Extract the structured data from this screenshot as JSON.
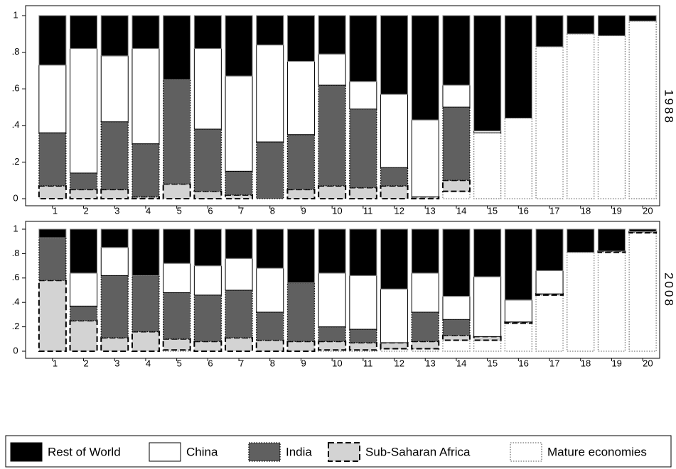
{
  "chart_data": {
    "type": "bar",
    "stacked": true,
    "panels": [
      "1988",
      "2008"
    ],
    "categories": [
      "1",
      "2",
      "3",
      "4",
      "5",
      "6",
      "7",
      "8",
      "9",
      "10",
      "11",
      "12",
      "13",
      "14",
      "15",
      "16",
      "17",
      "18",
      "19",
      "20"
    ],
    "ylim": [
      0,
      1
    ],
    "yticks": [
      0,
      {
        "value": 0.2,
        "label": ".2"
      },
      {
        "value": 0.4,
        "label": ".4"
      },
      {
        "value": 0.6,
        "label": ".6"
      },
      {
        "value": 0.8,
        "label": ".8"
      },
      1
    ],
    "series": [
      {
        "name": "Rest of World",
        "color": "#000000",
        "border": "solid",
        "values": [
          [
            0.27,
            0.18,
            0.22,
            0.18,
            0.35,
            0.18,
            0.33,
            0.16,
            0.25,
            0.21,
            0.36,
            0.43,
            0.57,
            0.38,
            0.63,
            0.56,
            0.17,
            0.1,
            0.11,
            0.03
          ],
          [
            0.07,
            0.36,
            0.15,
            0.38,
            0.28,
            0.3,
            0.24,
            0.32,
            0.44,
            0.36,
            0.38,
            0.49,
            0.36,
            0.55,
            0.39,
            0.58,
            0.34,
            0.19,
            0.18,
            0.02
          ]
        ]
      },
      {
        "name": "China",
        "color": "#ffffff",
        "border": "solid",
        "values": [
          [
            0.37,
            0.68,
            0.36,
            0.52,
            0,
            0.44,
            0.52,
            0.53,
            0.4,
            0.17,
            0.15,
            0.4,
            0.42,
            0.12,
            0.01,
            0,
            0,
            0,
            0,
            0
          ],
          [
            0,
            0.27,
            0.23,
            0,
            0.24,
            0.24,
            0.26,
            0.36,
            0,
            0.44,
            0.44,
            0.44,
            0.32,
            0.19,
            0.49,
            0.18,
            0.19,
            0,
            0,
            0
          ]
        ]
      },
      {
        "name": "India",
        "color": "#606060",
        "border": "dotted",
        "values": [
          [
            0.29,
            0.09,
            0.37,
            0.29,
            0.57,
            0.34,
            0.13,
            0.31,
            0.3,
            0.55,
            0.43,
            0.1,
            0,
            0.4,
            0,
            0,
            0,
            0,
            0,
            0
          ],
          [
            0.35,
            0.12,
            0.51,
            0.46,
            0.38,
            0.38,
            0.39,
            0.23,
            0.48,
            0.12,
            0.11,
            0,
            0.24,
            0.13,
            0,
            0,
            0,
            0,
            0,
            0
          ]
        ]
      },
      {
        "name": "Sub-Saharan Africa",
        "color": "#d3d3d3",
        "border": "dashed",
        "values": [
          [
            0.07,
            0.05,
            0.05,
            0.01,
            0.08,
            0.04,
            0.02,
            0,
            0.05,
            0.07,
            0.06,
            0.07,
            0.01,
            0.06,
            0,
            0,
            0,
            0,
            0,
            0
          ],
          [
            0.58,
            0.25,
            0.11,
            0.16,
            0.09,
            0.08,
            0.11,
            0.09,
            0.08,
            0.07,
            0.06,
            0.05,
            0.06,
            0.04,
            0.03,
            0.01,
            0.01,
            0,
            0.01,
            0.01
          ]
        ]
      },
      {
        "name": "Mature economies",
        "color": "#ffffff",
        "border": "dotted",
        "values": [
          [
            0,
            0,
            0,
            0,
            0,
            0,
            0,
            0,
            0,
            0,
            0,
            0,
            0,
            0.04,
            0.36,
            0.44,
            0.83,
            0.9,
            0.89,
            0.97
          ],
          [
            0,
            0,
            0,
            0,
            0.01,
            0,
            0,
            0,
            0,
            0.01,
            0.01,
            0.02,
            0.02,
            0.09,
            0.09,
            0.23,
            0.46,
            0.81,
            0.81,
            0.97
          ]
        ]
      }
    ]
  }
}
